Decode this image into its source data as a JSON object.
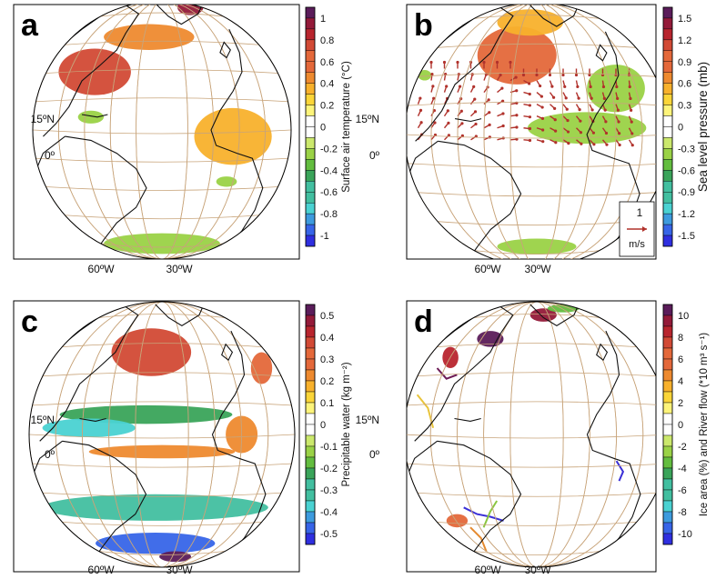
{
  "chart_data": [
    {
      "type": "heatmap",
      "panel_label": "a",
      "colorbar": {
        "title": "Surface air temperature (°C)",
        "ticks": [
          "1",
          "0.8",
          "0.6",
          "0.4",
          "0.2",
          "0",
          "-0.2",
          "-0.4",
          "-0.6",
          "-0.8",
          "-1"
        ],
        "values": [
          1,
          0.8,
          0.6,
          0.4,
          0.2,
          0,
          -0.2,
          -0.4,
          -0.6,
          -0.8,
          -1
        ]
      },
      "lat_labels": [
        "15ºN",
        "0º"
      ],
      "lon_labels": [
        "60ºW",
        "30ºW"
      ]
    },
    {
      "type": "heatmap",
      "panel_label": "b",
      "colorbar": {
        "title": "Sea level pressure (mb)",
        "ticks": [
          "1.5",
          "1.2",
          "0.9",
          "0.6",
          "0.3",
          "0",
          "-0.3",
          "-0.6",
          "-0.9",
          "-1.2",
          "-1.5"
        ],
        "values": [
          1.5,
          1.2,
          0.9,
          0.6,
          0.3,
          0,
          -0.3,
          -0.6,
          -0.9,
          -1.2,
          -1.5
        ]
      },
      "lat_labels": [
        "15ºN",
        "0º"
      ],
      "lon_labels": [
        "60ºW",
        "30ºW"
      ],
      "vector_key": {
        "value": "1",
        "unit": "m/s"
      }
    },
    {
      "type": "heatmap",
      "panel_label": "c",
      "colorbar": {
        "title": "Precipitable water (kg m⁻²)",
        "ticks": [
          "0.5",
          "0.4",
          "0.3",
          "0.2",
          "0.1",
          "0",
          "-0.1",
          "-0.2",
          "-0.3",
          "-0.4",
          "-0.5"
        ],
        "values": [
          0.5,
          0.4,
          0.3,
          0.2,
          0.1,
          0,
          -0.1,
          -0.2,
          -0.3,
          -0.4,
          -0.5
        ]
      },
      "lat_labels": [
        "15ºN",
        "0º"
      ],
      "lon_labels": [
        "60ºW",
        "30ºW"
      ]
    },
    {
      "type": "heatmap",
      "panel_label": "d",
      "colorbar": {
        "title": "Ice area (%) and River flow (*10 m³ s⁻¹)",
        "ticks": [
          "10",
          "8",
          "6",
          "4",
          "2",
          "0",
          "-2",
          "-4",
          "-6",
          "-8",
          "-10"
        ],
        "values": [
          10,
          8,
          6,
          4,
          2,
          0,
          -2,
          -4,
          -6,
          -8,
          -10
        ]
      },
      "lat_labels": [
        "15ºN",
        "0º"
      ],
      "lon_labels": [
        "60ºW",
        "30ºW"
      ]
    }
  ],
  "colors": {
    "positive": [
      "#ffffff",
      "#fdf47a",
      "#fbd538",
      "#f8b12c",
      "#ee8a2f",
      "#e4683a",
      "#d24a35",
      "#b8252e",
      "#941a39",
      "#5b1c5a"
    ],
    "negative": [
      "#ffffff",
      "#cbe86c",
      "#9ad246",
      "#63bd3f",
      "#3aa45a",
      "#42bfa0",
      "#4ad2d2",
      "#3d9bde",
      "#3765e8",
      "#2f2fe0"
    ],
    "grid": "#c8a47a",
    "coast": "#111111",
    "vector": "#b1322c"
  }
}
